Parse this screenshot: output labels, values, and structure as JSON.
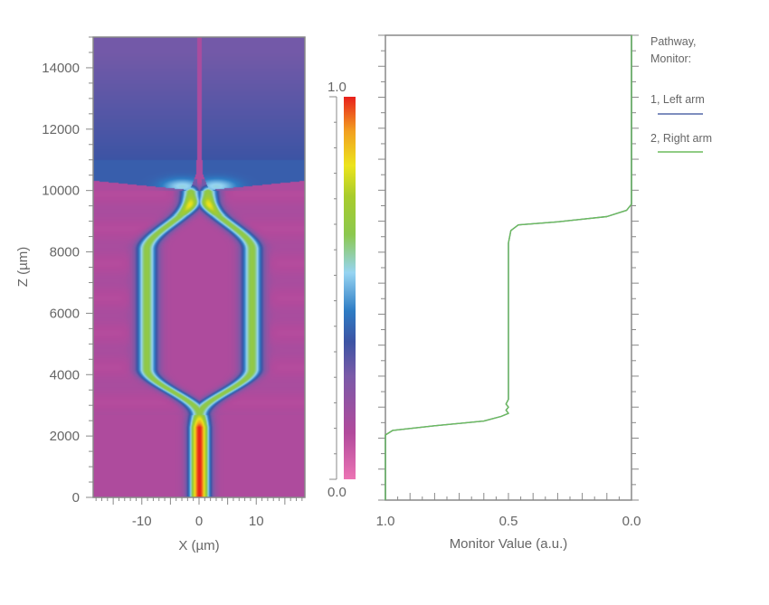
{
  "chart_data": [
    {
      "type": "heatmap",
      "xlabel": "X (µm)",
      "ylabel": "Z (µm)",
      "xlim": [
        -18.5,
        18.5
      ],
      "ylim": [
        0,
        15000
      ],
      "x_ticks": [
        -10,
        0,
        10
      ],
      "y_ticks": [
        0,
        2000,
        4000,
        6000,
        8000,
        10000,
        12000,
        14000
      ],
      "colorbar": {
        "range": [
          0.0,
          1.0
        ],
        "max_label": "1.0",
        "min_label": "0.0",
        "colors": [
          {
            "v": 0.0,
            "c": "#ec74b4"
          },
          {
            "v": 0.12,
            "c": "#b24a9c"
          },
          {
            "v": 0.27,
            "c": "#7a5aa8"
          },
          {
            "v": 0.36,
            "c": "#3c54a4"
          },
          {
            "v": 0.44,
            "c": "#2e7cc4"
          },
          {
            "v": 0.54,
            "c": "#96d4f2"
          },
          {
            "v": 0.64,
            "c": "#8cc84e"
          },
          {
            "v": 0.74,
            "c": "#a8cc2c"
          },
          {
            "v": 0.82,
            "c": "#ece41c"
          },
          {
            "v": 0.91,
            "c": "#f2a020"
          },
          {
            "v": 1.0,
            "c": "#e8201c"
          }
        ]
      }
    },
    {
      "type": "line",
      "xlabel": "Monitor Value (a.u.)",
      "xlim": [
        1.0,
        0.0
      ],
      "ylim": [
        0,
        15000
      ],
      "x_ticks": [
        "1.0",
        "0.5",
        "0.0"
      ],
      "legend": {
        "title_line1": "Pathway,",
        "title_line2": "Monitor:",
        "placement": "right"
      },
      "series": [
        {
          "name": "1, Left arm",
          "color": "#5468a8",
          "points": [
            [
              1,
              0
            ],
            [
              1,
              2100
            ],
            [
              0.97,
              2250
            ],
            [
              0.8,
              2400
            ],
            [
              0.6,
              2550
            ],
            [
              0.53,
              2700
            ],
            [
              0.5,
              2800
            ],
            [
              0.51,
              2900
            ],
            [
              0.5,
              3000
            ],
            [
              0.51,
              3100
            ],
            [
              0.5,
              3250
            ],
            [
              0.5,
              8300
            ],
            [
              0.49,
              8700
            ],
            [
              0.46,
              8880
            ],
            [
              0.3,
              8980
            ],
            [
              0.1,
              9150
            ],
            [
              0.02,
              9350
            ],
            [
              0,
              9550
            ],
            [
              0,
              15000
            ]
          ]
        },
        {
          "name": "2, Right arm",
          "color": "#6cbc5c",
          "points": [
            [
              1,
              0
            ],
            [
              1,
              2100
            ],
            [
              0.97,
              2250
            ],
            [
              0.8,
              2400
            ],
            [
              0.6,
              2550
            ],
            [
              0.53,
              2700
            ],
            [
              0.5,
              2800
            ],
            [
              0.51,
              2900
            ],
            [
              0.5,
              3000
            ],
            [
              0.51,
              3100
            ],
            [
              0.5,
              3250
            ],
            [
              0.5,
              8300
            ],
            [
              0.49,
              8700
            ],
            [
              0.46,
              8880
            ],
            [
              0.3,
              8980
            ],
            [
              0.1,
              9150
            ],
            [
              0.02,
              9350
            ],
            [
              0,
              9550
            ],
            [
              0,
              15000
            ]
          ]
        }
      ]
    }
  ]
}
